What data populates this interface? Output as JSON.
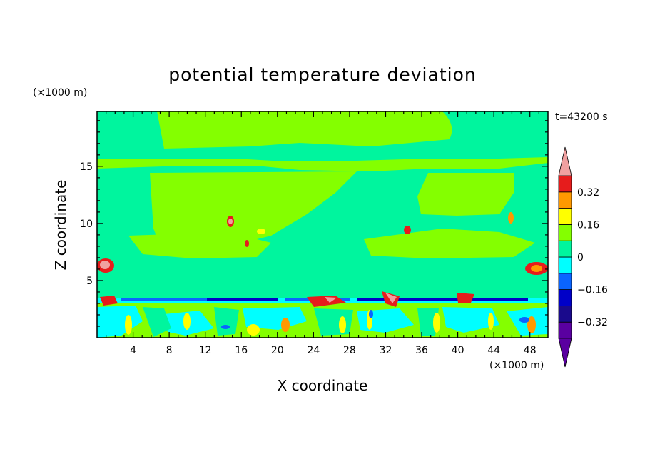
{
  "chart_data": {
    "type": "heatmap",
    "title": "potential temperature deviation",
    "xlabel": "X coordinate",
    "ylabel": "Z coordinate",
    "x_unit": "(×1000 m)",
    "y_unit": "(×1000 m)",
    "time_label": "t=43200 s",
    "xlim": [
      0,
      50
    ],
    "ylim": [
      0,
      19.8
    ],
    "x_ticks": [
      4,
      8,
      12,
      16,
      20,
      24,
      28,
      32,
      36,
      40,
      44,
      48
    ],
    "y_ticks": [
      5,
      10,
      15
    ],
    "colorbar": {
      "levels": [
        -0.4,
        -0.32,
        -0.24,
        -0.16,
        -0.08,
        0,
        0.08,
        0.16,
        0.24,
        0.32,
        0.4
      ],
      "labels": [
        "0.32",
        "0.16",
        "0",
        "−0.16",
        "−0.32"
      ],
      "label_values": [
        0.32,
        0.16,
        0,
        -0.16,
        -0.32
      ],
      "colors": [
        "#5a00a0",
        "#5a00a0",
        "#1a0a8c",
        "#0000c8",
        "#0a64ff",
        "#00ffff",
        "#00f59e",
        "#84ff00",
        "#ffff00",
        "#ff9900",
        "#e61c1c",
        "#f0a0a0"
      ]
    },
    "grid": false
  }
}
